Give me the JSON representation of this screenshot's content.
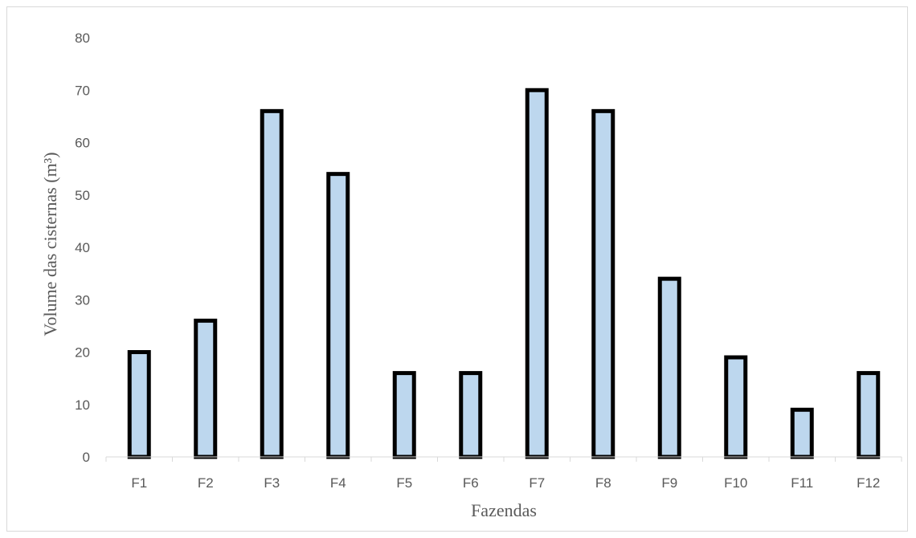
{
  "chart_data": {
    "type": "bar",
    "categories": [
      "F1",
      "F2",
      "F3",
      "F4",
      "F5",
      "F6",
      "F7",
      "F8",
      "F9",
      "F10",
      "F11",
      "F12"
    ],
    "values": [
      20,
      26,
      66,
      54,
      16,
      16,
      70,
      66,
      34,
      19,
      9,
      16
    ],
    "title": "",
    "xlabel": "Fazendas",
    "ylabel": "Volume das cisternas (m³)",
    "ylim": [
      0,
      80
    ],
    "yticks": [
      0,
      10,
      20,
      30,
      40,
      50,
      60,
      70,
      80
    ],
    "grid": false,
    "legend": "none",
    "bar_fill": "#bdd7ee",
    "bar_stroke": "#000000"
  }
}
